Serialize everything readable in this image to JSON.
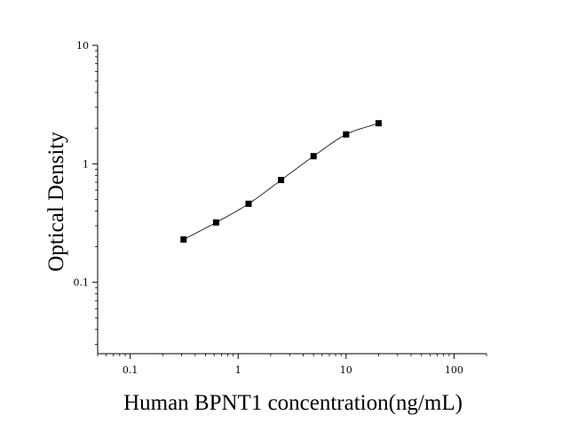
{
  "chart_data": {
    "type": "scatter",
    "title": "",
    "xlabel": "Human BPNT1 concentration(ng/mL)",
    "ylabel": "Optical Density",
    "xscale": "log",
    "yscale": "log",
    "xlim": [
      0.05,
      200
    ],
    "ylim": [
      0.025,
      10
    ],
    "xticks": [
      {
        "value": 0.1,
        "label": "0.1"
      },
      {
        "value": 1,
        "label": "1"
      },
      {
        "value": 10,
        "label": "10"
      },
      {
        "value": 100,
        "label": "100"
      }
    ],
    "yticks": [
      {
        "value": 0.1,
        "label": "0.1"
      },
      {
        "value": 1,
        "label": "1"
      },
      {
        "value": 10,
        "label": "10"
      }
    ],
    "grid": false,
    "series": [
      {
        "x": [
          0.3125,
          0.625,
          1.25,
          2.5,
          5,
          10,
          20
        ],
        "y": [
          0.23,
          0.32,
          0.46,
          0.73,
          1.16,
          1.77,
          2.2
        ],
        "marker": "square",
        "fit_curve": true,
        "color": "#000000"
      }
    ]
  }
}
